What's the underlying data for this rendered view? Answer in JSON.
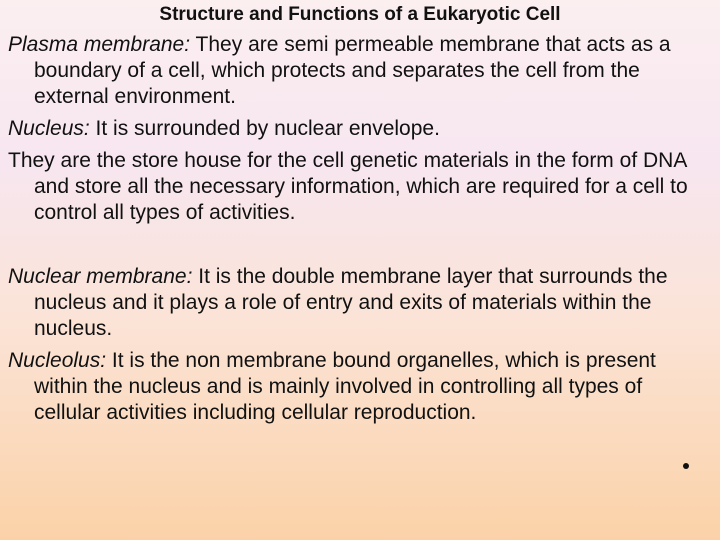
{
  "header": {
    "title": "Structure and Functions of a Eukaryotic Cell"
  },
  "paragraphs": [
    {
      "term": "Plasma membrane:",
      "text": "They are semi permeable membrane that acts as a boundary of a cell, which protects and separates the cell from the external environment."
    },
    {
      "term": "Nucleus:",
      "text": "It is surrounded by nuclear envelope."
    },
    {
      "text": "They are the store house for the cell genetic materials in the form of DNA and store all the necessary information, which are required for a cell to control all types of activities."
    },
    {
      "term": "Nuclear membrane:",
      "text": "It is the double membrane layer that surrounds the nucleus and it plays a role of entry and exits of materials within the nucleus."
    },
    {
      "term": "Nucleolus:",
      "text": "It is the non membrane bound organelles, which is present within the nucleus and is mainly involved in controlling all types of cellular activities including cellular reproduction."
    }
  ]
}
